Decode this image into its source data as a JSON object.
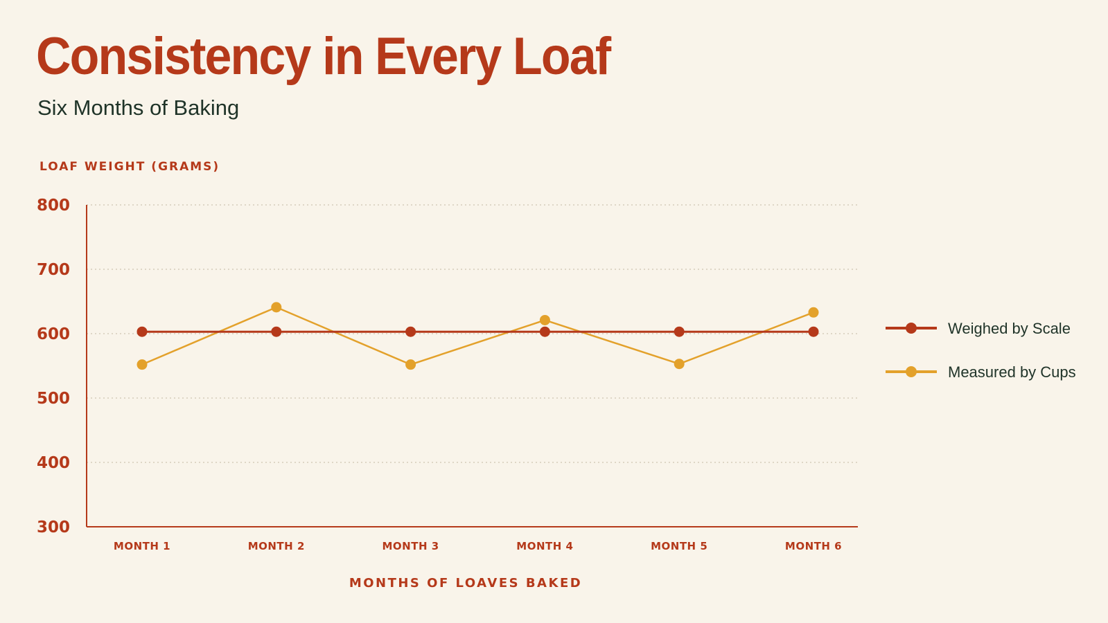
{
  "title": "Consistency in Every Loaf",
  "subtitle": "Six Months of Baking",
  "colors": {
    "background": "#f9f4ea",
    "accent": "#b5391a",
    "scale": "#b5391a",
    "cups": "#e3a12b",
    "text_dark": "#1f3328",
    "grid": "#cfc3b0"
  },
  "chart_data": {
    "type": "line",
    "title": "Consistency in Every Loaf",
    "subtitle": "Six Months of Baking",
    "ylabel": "LOAF WEIGHT (GRAMS)",
    "xlabel": "MONTHS OF LOAVES BAKED",
    "categories": [
      "MONTH 1",
      "MONTH 2",
      "MONTH 3",
      "MONTH 4",
      "MONTH 5",
      "MONTH 6"
    ],
    "ylim": [
      300,
      800
    ],
    "yticks": [
      800,
      700,
      600,
      500,
      400,
      300
    ],
    "grid": true,
    "legend_position": "right",
    "series": [
      {
        "name": "Weighed by Scale",
        "color": "#b5391a",
        "values": [
          603,
          603,
          603,
          603,
          603,
          603
        ]
      },
      {
        "name": "Measured by Cups",
        "color": "#e3a12b",
        "values": [
          552,
          641,
          552,
          621,
          553,
          633
        ]
      }
    ]
  }
}
